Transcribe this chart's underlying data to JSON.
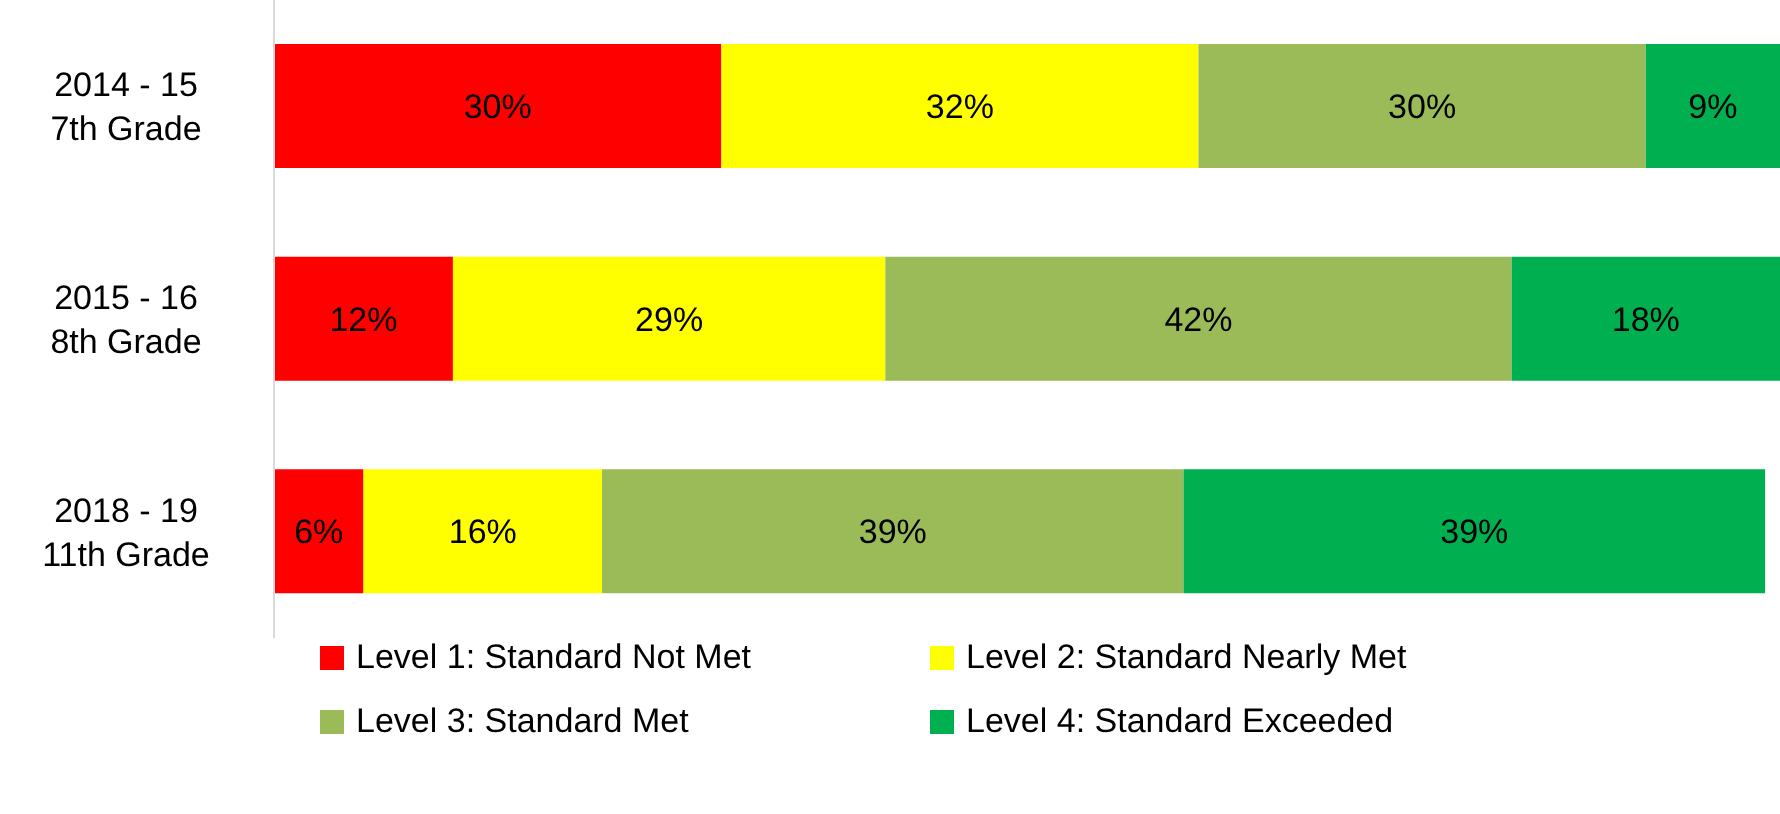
{
  "chart_data": {
    "type": "bar",
    "orientation": "horizontal",
    "stacked": true,
    "categories": [
      "2014 - 15\n7th Grade",
      "2015 - 16\n8th Grade",
      "2018 - 19\n11th Grade"
    ],
    "series": [
      {
        "name": "Level 1: Standard Not Met",
        "color": "#ff0000",
        "values": [
          30,
          12,
          6
        ],
        "value_labels": [
          "30%",
          "12%",
          "6%"
        ]
      },
      {
        "name": "Level 2: Standard Nearly Met",
        "color": "#ffff00",
        "values": [
          32,
          29,
          16
        ],
        "value_labels": [
          "32%",
          "29%",
          "16%"
        ]
      },
      {
        "name": "Level 3: Standard Met",
        "color": "#9bbb59",
        "values": [
          30,
          42,
          39
        ],
        "value_labels": [
          "30%",
          "42%",
          "39%"
        ]
      },
      {
        "name": "Level 4: Standard Exceeded",
        "color": "#00b050",
        "values": [
          9,
          18,
          39
        ],
        "value_labels": [
          "9%",
          "18%",
          "39%"
        ]
      }
    ],
    "legend": "bottom",
    "grid": false
  }
}
